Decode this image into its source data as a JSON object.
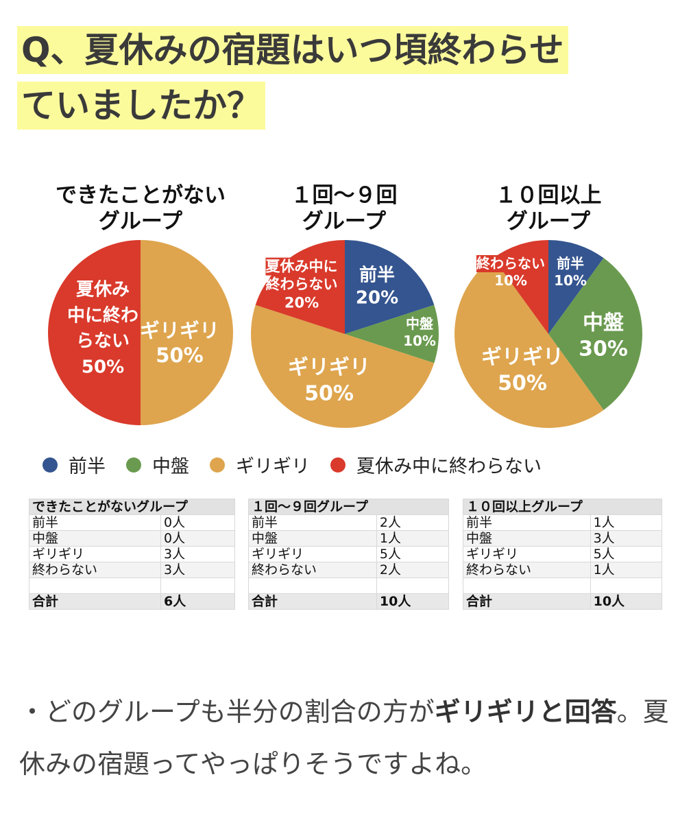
{
  "title": {
    "line1": "Q、夏休みの宿題はいつ頃終わらせ",
    "line2": "ていましたか？"
  },
  "colors": {
    "前半": "#34558f",
    "中盤": "#6a9a4f",
    "ギリギリ": "#dea54e",
    "終わらない": "#d93a2b"
  },
  "chart_data": [
    {
      "type": "pie",
      "title": "できたことがない グループ",
      "title_lines": [
        "できたことがない",
        "グループ"
      ],
      "categories": [
        "前半",
        "中盤",
        "ギリギリ",
        "夏休み中に終わらない"
      ],
      "values": [
        0,
        0,
        50,
        50
      ],
      "labels": [
        [
          "ギリギリ",
          "50%"
        ],
        [
          "夏休",
          "み",
          "中に終わ",
          "らない",
          "50%"
        ]
      ]
    },
    {
      "type": "pie",
      "title": "1回〜9回 グループ",
      "title_lines": [
        "１回〜９回",
        "グループ"
      ],
      "categories": [
        "前半",
        "中盤",
        "ギリギリ",
        "夏休み中に終わらない"
      ],
      "values": [
        20,
        10,
        50,
        20
      ],
      "labels": [
        [
          "前半",
          "20%"
        ],
        [
          "中盤",
          "10%"
        ],
        [
          "ギリギリ",
          "50%"
        ],
        [
          "夏休み中に",
          "終わらない",
          "20%"
        ]
      ]
    },
    {
      "type": "pie",
      "title": "10回以上 グループ",
      "title_lines": [
        "１０回以上",
        "グループ"
      ],
      "categories": [
        "前半",
        "中盤",
        "ギリギリ",
        "夏休み中に終わらない"
      ],
      "values": [
        10,
        30,
        50,
        10
      ],
      "labels": [
        [
          "前半",
          "10%"
        ],
        [
          "中盤",
          "30%"
        ],
        [
          "ギリギリ",
          "50%"
        ],
        [
          "終わらない",
          "10%"
        ]
      ]
    }
  ],
  "legend": [
    "前半",
    "中盤",
    "ギリギリ",
    "夏休み中に終わらない"
  ],
  "tables": [
    {
      "header": "できたことがないグループ",
      "rows": [
        [
          "前半",
          "0人"
        ],
        [
          "中盤",
          "0人"
        ],
        [
          "ギリギリ",
          "3人"
        ],
        [
          "終わらない",
          "3人"
        ],
        [
          "",
          ""
        ]
      ],
      "total": [
        "合計",
        "6人"
      ]
    },
    {
      "header": "１回〜９回グループ",
      "rows": [
        [
          "前半",
          "2人"
        ],
        [
          "中盤",
          "1人"
        ],
        [
          "ギリギリ",
          "5人"
        ],
        [
          "終わらない",
          "2人"
        ],
        [
          "",
          ""
        ]
      ],
      "total": [
        "合計",
        "10人"
      ]
    },
    {
      "header": "１０回以上グループ",
      "rows": [
        [
          "前半",
          "1人"
        ],
        [
          "中盤",
          "3人"
        ],
        [
          "ギリギリ",
          "5人"
        ],
        [
          "終わらない",
          "1人"
        ],
        [
          "",
          ""
        ]
      ],
      "total": [
        "合計",
        "10人"
      ]
    }
  ],
  "paragraph": {
    "pre": "・どのグループも半分の割合の方が",
    "bold": "ギリギリと回答",
    "post": "。夏休みの宿題ってやっぱりそうですよね。"
  }
}
